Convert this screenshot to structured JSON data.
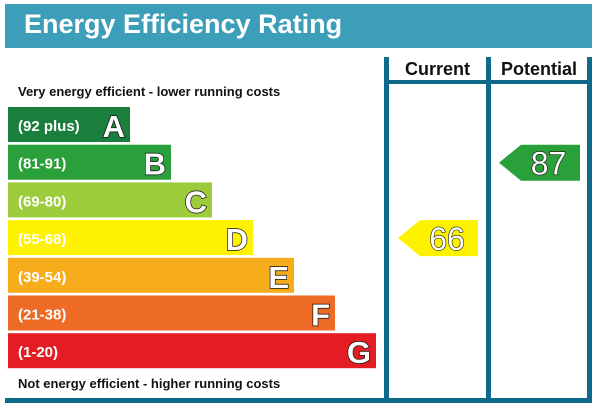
{
  "chart_data": {
    "type": "bar",
    "title": "Energy Efficiency Rating",
    "columns": [
      "Current",
      "Potential"
    ],
    "top_caption": "Very energy efficient - lower running costs",
    "bottom_caption": "Not energy efficient - higher running costs",
    "bands": [
      {
        "range": "(92 plus)",
        "letter": "A",
        "color": "#1a7f3c",
        "min": 92,
        "max": 100
      },
      {
        "range": "(81-91)",
        "letter": "B",
        "color": "#2aa03a",
        "min": 81,
        "max": 91
      },
      {
        "range": "(69-80)",
        "letter": "C",
        "color": "#9ccb3b",
        "min": 69,
        "max": 80
      },
      {
        "range": "(55-68)",
        "letter": "D",
        "color": "#fff200",
        "min": 55,
        "max": 68
      },
      {
        "range": "(39-54)",
        "letter": "E",
        "color": "#f7ac1c",
        "min": 39,
        "max": 54
      },
      {
        "range": "(21-38)",
        "letter": "F",
        "color": "#ee6b25",
        "min": 21,
        "max": 38
      },
      {
        "range": "(1-20)",
        "letter": "G",
        "color": "#e31d23",
        "min": 1,
        "max": 20
      }
    ],
    "current": {
      "value": 66,
      "color": "#fff200"
    },
    "potential": {
      "value": 87,
      "color": "#2aa03a"
    },
    "title_bar_color": "#3c9eb9",
    "frame_color": "#0e6a8a"
  }
}
